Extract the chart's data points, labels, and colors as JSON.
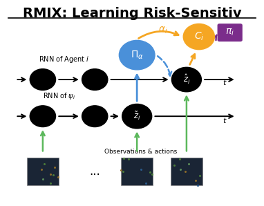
{
  "title": "RMIX: Learning Risk-Sensitiv",
  "title_fontsize": 14,
  "bg_color": "#ffffff",
  "colors": {
    "black": "#000000",
    "blue": "#4a90d9",
    "orange": "#f5a623",
    "purple": "#7b2d8b",
    "green": "#5cb85c"
  }
}
